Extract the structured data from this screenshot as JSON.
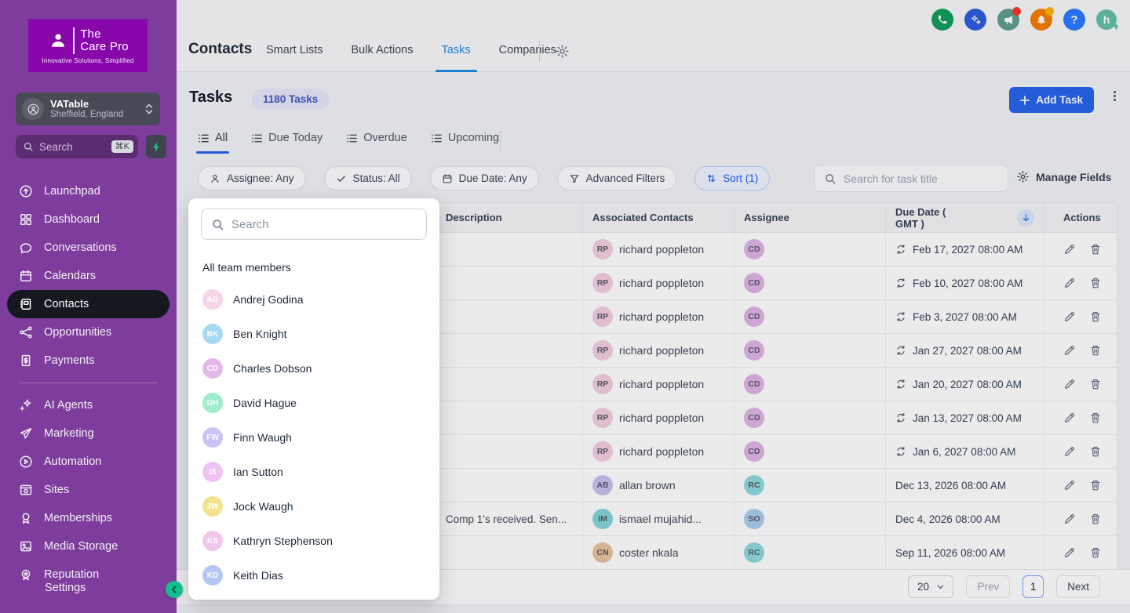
{
  "sidebar": {
    "logo": {
      "line1": "The",
      "line2": "Care Pro",
      "tagline": "Innovative Solutions, Simplified"
    },
    "location": {
      "name": "VATable",
      "subtitle": "Sheffield, England"
    },
    "search": {
      "placeholder": "Search",
      "shortcut": "⌘K"
    },
    "primary": [
      {
        "label": "Launchpad",
        "icon": "launchpad-icon"
      },
      {
        "label": "Dashboard",
        "icon": "dashboard-icon"
      },
      {
        "label": "Conversations",
        "icon": "conversations-icon"
      },
      {
        "label": "Calendars",
        "icon": "calendars-icon"
      },
      {
        "label": "Contacts",
        "icon": "contacts-icon",
        "active": true
      },
      {
        "label": "Opportunities",
        "icon": "opportunities-icon"
      },
      {
        "label": "Payments",
        "icon": "payments-icon"
      }
    ],
    "secondary": [
      {
        "label": "AI Agents",
        "icon": "ai-agents-icon"
      },
      {
        "label": "Marketing",
        "icon": "marketing-icon"
      },
      {
        "label": "Automation",
        "icon": "automation-icon"
      },
      {
        "label": "Sites",
        "icon": "sites-icon"
      },
      {
        "label": "Memberships",
        "icon": "memberships-icon"
      },
      {
        "label": "Media Storage",
        "icon": "media-storage-icon"
      },
      {
        "label": "Reputation",
        "icon": "reputation-icon"
      }
    ],
    "settings_label": "Settings"
  },
  "topnav": {
    "title": "Contacts",
    "tabs": [
      {
        "label": "Smart Lists"
      },
      {
        "label": "Bulk Actions"
      },
      {
        "label": "Tasks",
        "active": true
      },
      {
        "label": "Companies"
      }
    ],
    "help_glyph": "?",
    "logo_glyph": "h"
  },
  "header": {
    "title": "Tasks",
    "badge": "1180 Tasks",
    "add_button": "Add Task"
  },
  "view_tabs": [
    {
      "label": "All",
      "active": true
    },
    {
      "label": "Due Today"
    },
    {
      "label": "Overdue"
    },
    {
      "label": "Upcoming"
    }
  ],
  "filters": {
    "assignee": "Assignee: Any",
    "status": "Status: All",
    "due_date": "Due Date: Any",
    "advanced": "Advanced Filters",
    "sort": "Sort (1)",
    "search_placeholder": "Search for task title",
    "manage_fields": "Manage Fields"
  },
  "dropdown": {
    "search_placeholder": "Search",
    "header": "All team members",
    "members": [
      {
        "initials": "AG",
        "name": "Andrej Godina",
        "color": "#f7d4e8"
      },
      {
        "initials": "BK",
        "name": "Ben Knight",
        "color": "#a6d9f2"
      },
      {
        "initials": "CD",
        "name": "Charles Dobson",
        "color": "#e5b8ec"
      },
      {
        "initials": "DH",
        "name": "David Hague",
        "color": "#9fecca"
      },
      {
        "initials": "FW",
        "name": "Finn Waugh",
        "color": "#c9c4f5"
      },
      {
        "initials": "IS",
        "name": "Ian Sutton",
        "color": "#efc4f3"
      },
      {
        "initials": "JW",
        "name": "Jock Waugh",
        "color": "#f3e391"
      },
      {
        "initials": "KS",
        "name": "Kathryn Stephenson",
        "color": "#f2c7ec"
      },
      {
        "initials": "KD",
        "name": "Keith Dias",
        "color": "#b5c8f5"
      }
    ]
  },
  "table": {
    "columns": [
      "Description",
      "Associated Contacts",
      "Assignee",
      "Due Date ( GMT )",
      "Actions"
    ],
    "rows": [
      {
        "description": "",
        "contact_initials": "RP",
        "contact_name": "richard poppleton",
        "contact_color": "#f3cde0",
        "assignee_initials": "CD",
        "assignee_color": "#e0b3e6",
        "recurring": true,
        "due": "Feb 17, 2027 08:00 AM"
      },
      {
        "description": "",
        "contact_initials": "RP",
        "contact_name": "richard poppleton",
        "contact_color": "#f3cde0",
        "assignee_initials": "CD",
        "assignee_color": "#e0b3e6",
        "recurring": true,
        "due": "Feb 10, 2027 08:00 AM"
      },
      {
        "description": "",
        "contact_initials": "RP",
        "contact_name": "richard poppleton",
        "contact_color": "#f3cde0",
        "assignee_initials": "CD",
        "assignee_color": "#e0b3e6",
        "recurring": true,
        "due": "Feb 3, 2027 08:00 AM"
      },
      {
        "description": "",
        "contact_initials": "RP",
        "contact_name": "richard poppleton",
        "contact_color": "#f3cde0",
        "assignee_initials": "CD",
        "assignee_color": "#e0b3e6",
        "recurring": true,
        "due": "Jan 27, 2027 08:00 AM"
      },
      {
        "description": "",
        "contact_initials": "RP",
        "contact_name": "richard poppleton",
        "contact_color": "#f3cde0",
        "assignee_initials": "CD",
        "assignee_color": "#e0b3e6",
        "recurring": true,
        "due": "Jan 20, 2027 08:00 AM"
      },
      {
        "description": "",
        "contact_initials": "RP",
        "contact_name": "richard poppleton",
        "contact_color": "#f3cde0",
        "assignee_initials": "CD",
        "assignee_color": "#e0b3e6",
        "recurring": true,
        "due": "Jan 13, 2027 08:00 AM"
      },
      {
        "description": "",
        "contact_initials": "RP",
        "contact_name": "richard poppleton",
        "contact_color": "#f3cde0",
        "assignee_initials": "CD",
        "assignee_color": "#e0b3e6",
        "recurring": true,
        "due": "Jan 6, 2027 08:00 AM"
      },
      {
        "description": "",
        "contact_initials": "AB",
        "contact_name": "allan brown",
        "contact_color": "#c9c0ed",
        "assignee_initials": "RC",
        "assignee_color": "#8ed9dd",
        "recurring": false,
        "due": "Dec 13, 2026 08:00 AM"
      },
      {
        "description": "Comp 1's received. Sen...",
        "contact_initials": "IM",
        "contact_name": "ismael mujahid...",
        "contact_color": "#83d5d8",
        "assignee_initials": "SO",
        "assignee_color": "#a9cdec",
        "recurring": false,
        "due": "Dec 4, 2026 08:00 AM"
      },
      {
        "description": "",
        "contact_initials": "CN",
        "contact_name": "coster nkala",
        "contact_color": "#e9c29b",
        "assignee_initials": "RC",
        "assignee_color": "#8ed9dd",
        "recurring": false,
        "due": "Sep 11, 2026 08:00 AM"
      }
    ]
  },
  "pagination": {
    "page_size": "20",
    "prev": "Prev",
    "page": "1",
    "next": "Next"
  },
  "colors": {
    "accent_blue": "#2563eb",
    "nav_active_blue": "#1e88e5",
    "sidebar_purple": "#7e3d9c",
    "logo_purple": "#8807ab"
  }
}
